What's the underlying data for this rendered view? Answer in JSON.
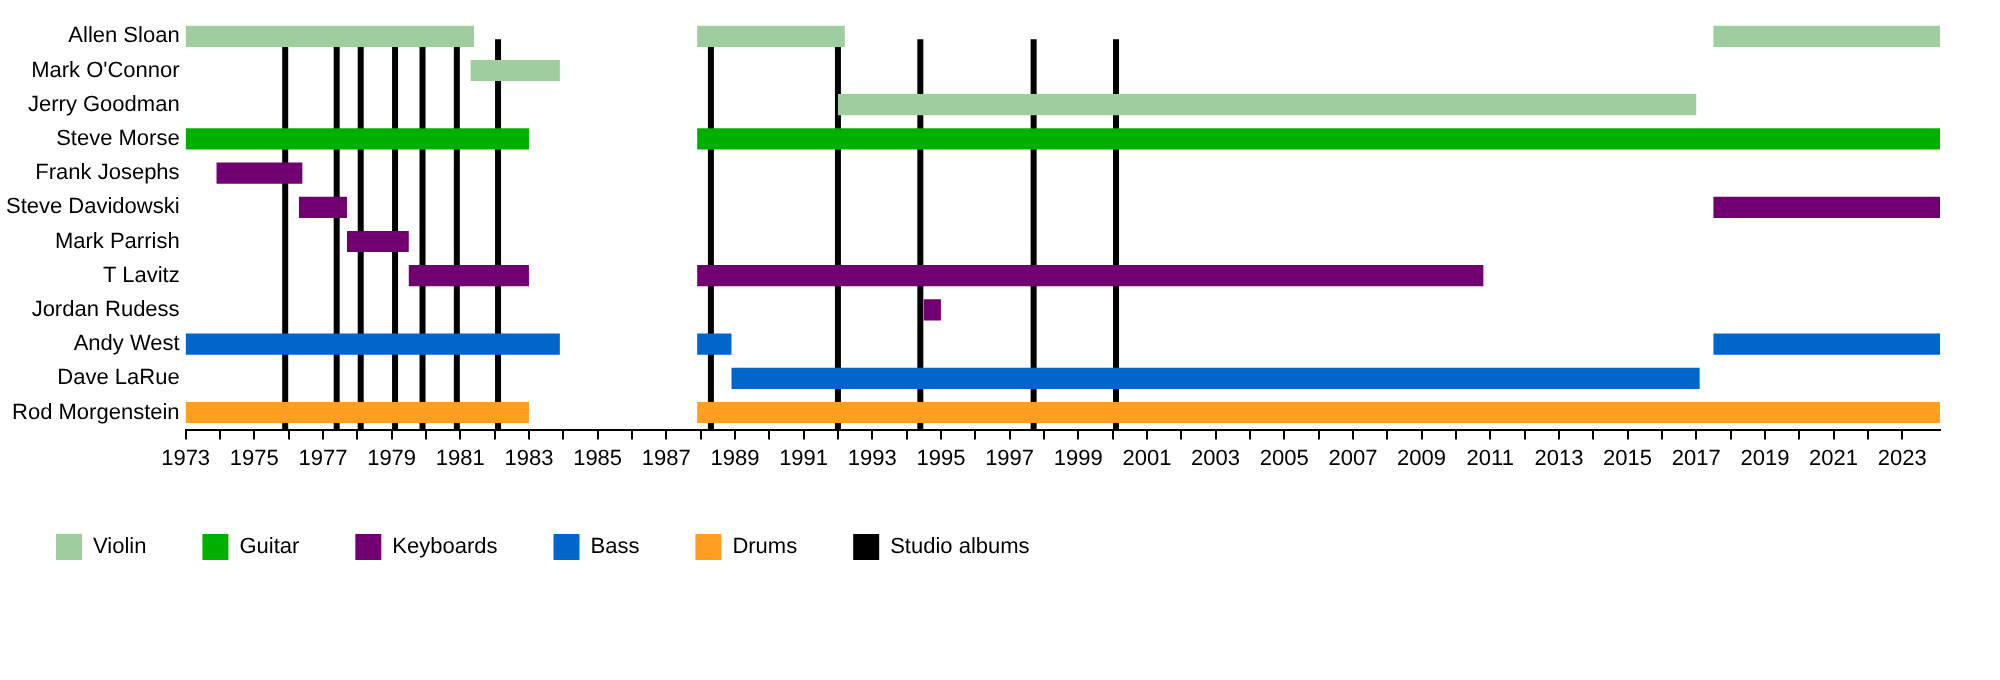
{
  "chart_data": {
    "type": "bar",
    "orientation": "horizontal",
    "categories": [
      "Allen Sloan",
      "Mark O'Connor",
      "Jerry Goodman",
      "Steve Morse",
      "Frank Josephs",
      "Steve Davidowski",
      "Mark Parrish",
      "T Lavitz",
      "Jordan Rudess",
      "Andy West",
      "Dave LaRue",
      "Rod Morgenstein"
    ],
    "series": [
      {
        "name": "Violin",
        "color": "#9fcd9f",
        "base": [
          1973,
          1981.3,
          1992.0,
          null,
          null,
          null,
          null,
          null,
          null,
          null,
          null,
          null
        ],
        "values": [
          8.4,
          2.6,
          25.0,
          null,
          null,
          null,
          null,
          null,
          null,
          null,
          null,
          null
        ]
      },
      {
        "color": "#9fcd9f",
        "base": [
          1987.9,
          null,
          null,
          null,
          null,
          null,
          null,
          null,
          null,
          null,
          null,
          null
        ],
        "values": [
          4.3,
          null,
          null,
          null,
          null,
          null,
          null,
          null,
          null,
          null,
          null,
          null
        ]
      },
      {
        "color": "#9fcd9f",
        "base": [
          2017.5,
          null,
          null,
          null,
          null,
          null,
          null,
          null,
          null,
          null,
          null,
          null
        ],
        "values": [
          6.6,
          null,
          null,
          null,
          null,
          null,
          null,
          null,
          null,
          null,
          null,
          null
        ]
      },
      {
        "name": "Guitar",
        "color": "#00b000",
        "base": [
          null,
          null,
          null,
          1973,
          null,
          null,
          null,
          null,
          null,
          null,
          null,
          null
        ],
        "values": [
          null,
          null,
          null,
          10.0,
          null,
          null,
          null,
          null,
          null,
          null,
          null,
          null
        ]
      },
      {
        "color": "#00b000",
        "base": [
          null,
          null,
          null,
          1987.9,
          null,
          null,
          null,
          null,
          null,
          null,
          null,
          null
        ],
        "values": [
          null,
          null,
          null,
          36.2,
          null,
          null,
          null,
          null,
          null,
          null,
          null,
          null
        ]
      },
      {
        "name": "Keyboards",
        "color": "#730073",
        "base": [
          null,
          null,
          null,
          null,
          1973.9,
          1976.3,
          1977.7,
          1979.5,
          1994.5,
          null,
          null,
          null
        ],
        "values": [
          null,
          null,
          null,
          null,
          2.5,
          1.4,
          1.8,
          3.5,
          0.5,
          null,
          null,
          null
        ]
      },
      {
        "color": "#730073",
        "base": [
          null,
          null,
          null,
          null,
          null,
          2017.5,
          null,
          1987.9,
          null,
          null,
          null,
          null
        ],
        "values": [
          null,
          null,
          null,
          null,
          null,
          6.6,
          null,
          22.9,
          null,
          null,
          null,
          null
        ]
      },
      {
        "name": "Bass",
        "color": "#0066cc",
        "base": [
          null,
          null,
          null,
          null,
          null,
          null,
          null,
          null,
          null,
          1973,
          1988.9,
          null
        ],
        "values": [
          null,
          null,
          null,
          null,
          null,
          null,
          null,
          null,
          null,
          10.9,
          28.2,
          null
        ]
      },
      {
        "color": "#0066cc",
        "base": [
          null,
          null,
          null,
          null,
          null,
          null,
          null,
          null,
          null,
          1987.9,
          null,
          null
        ],
        "values": [
          null,
          null,
          null,
          null,
          null,
          null,
          null,
          null,
          null,
          1.0,
          null,
          null
        ]
      },
      {
        "color": "#0066cc",
        "base": [
          null,
          null,
          null,
          null,
          null,
          null,
          null,
          null,
          null,
          2017.5,
          null,
          null
        ],
        "values": [
          null,
          null,
          null,
          null,
          null,
          null,
          null,
          null,
          null,
          6.6,
          null,
          null
        ]
      },
      {
        "name": "Drums",
        "color": "#ff9e20",
        "base": [
          null,
          null,
          null,
          null,
          null,
          null,
          null,
          null,
          null,
          null,
          null,
          1973
        ],
        "values": [
          null,
          null,
          null,
          null,
          null,
          null,
          null,
          null,
          null,
          null,
          null,
          10.0
        ]
      },
      {
        "color": "#ff9e20",
        "base": [
          null,
          null,
          null,
          null,
          null,
          null,
          null,
          null,
          null,
          null,
          null,
          1987.9
        ],
        "values": [
          null,
          null,
          null,
          null,
          null,
          null,
          null,
          null,
          null,
          null,
          null,
          36.2
        ]
      }
    ],
    "ref_lines": [
      {
        "axis": "x",
        "value": 1975.9,
        "label": "Studio albums",
        "color": "#000000"
      },
      {
        "axis": "x",
        "value": 1977.4,
        "color": "#000000"
      },
      {
        "axis": "x",
        "value": 1978.1,
        "color": "#000000"
      },
      {
        "axis": "x",
        "value": 1979.1,
        "color": "#000000"
      },
      {
        "axis": "x",
        "value": 1979.9,
        "color": "#000000"
      },
      {
        "axis": "x",
        "value": 1980.9,
        "color": "#000000"
      },
      {
        "axis": "x",
        "value": 1982.1,
        "color": "#000000"
      },
      {
        "axis": "x",
        "value": 1988.3,
        "color": "#000000"
      },
      {
        "axis": "x",
        "value": 1992.0,
        "color": "#000000"
      },
      {
        "axis": "x",
        "value": 1994.4,
        "color": "#000000"
      },
      {
        "axis": "x",
        "value": 1997.7,
        "color": "#000000"
      },
      {
        "axis": "x",
        "value": 2000.1,
        "color": "#000000"
      }
    ],
    "xlim": [
      1973,
      2024.1
    ],
    "xticks": [
      1973,
      {
        "value": 1974,
        "label": null
      },
      1975,
      {
        "value": 1976,
        "label": null
      },
      1977,
      {
        "value": 1978,
        "label": null
      },
      1979,
      {
        "value": 1980,
        "label": null
      },
      1981,
      {
        "value": 1982,
        "label": null
      },
      1983,
      {
        "value": 1984,
        "label": null
      },
      1985,
      {
        "value": 1986,
        "label": null
      },
      1987,
      {
        "value": 1988,
        "label": null
      },
      1989,
      {
        "value": 1990,
        "label": null
      },
      1991,
      {
        "value": 1992,
        "label": null
      },
      1993,
      {
        "value": 1994,
        "label": null
      },
      1995,
      {
        "value": 1996,
        "label": null
      },
      1997,
      {
        "value": 1998,
        "label": null
      },
      1999,
      {
        "value": 2000,
        "label": null
      },
      2001,
      {
        "value": 2002,
        "label": null
      },
      2003,
      {
        "value": 2004,
        "label": null
      },
      2005,
      {
        "value": 2006,
        "label": null
      },
      2007,
      {
        "value": 2008,
        "label": null
      },
      2009,
      {
        "value": 2010,
        "label": null
      },
      2011,
      {
        "value": 2012,
        "label": null
      },
      2013,
      {
        "value": 2014,
        "label": null
      },
      2015,
      {
        "value": 2016,
        "label": null
      },
      2017,
      {
        "value": 2018,
        "label": null
      },
      2019,
      {
        "value": 2020,
        "label": null
      },
      2021,
      {
        "value": 2022,
        "label": null
      },
      2023
    ],
    "grid": false,
    "legend": "bottom left"
  }
}
